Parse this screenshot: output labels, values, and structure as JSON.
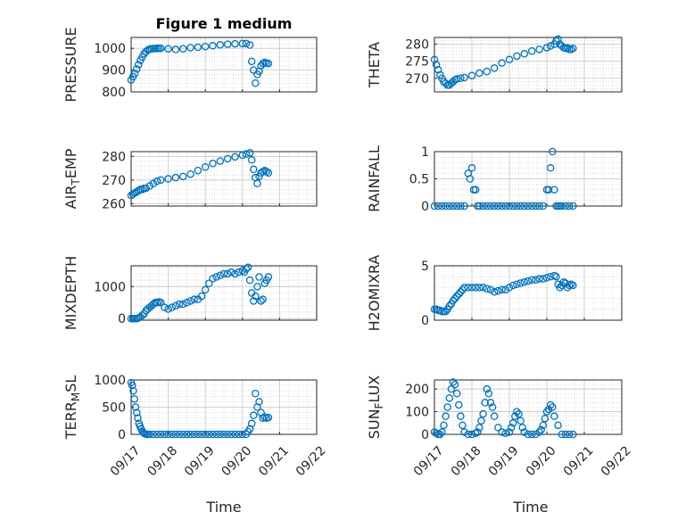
{
  "figure": {
    "title": "Figure 1 medium"
  },
  "chart_data": [
    {
      "type": "scatter",
      "name": "pressure",
      "ylabel": "PRESSURE",
      "ylim": [
        800,
        1050
      ],
      "yticks": [
        800,
        900,
        1000
      ],
      "ytick_labels": [
        "800",
        "900",
        "1000"
      ],
      "x": [
        0,
        0.05,
        0.1,
        0.15,
        0.2,
        0.25,
        0.3,
        0.35,
        0.4,
        0.45,
        0.5,
        0.55,
        0.6,
        0.65,
        0.7,
        0.75,
        0.8,
        1,
        1.2,
        1.4,
        1.6,
        1.8,
        2,
        2.2,
        2.4,
        2.6,
        2.8,
        3,
        3.1,
        3.2,
        3.25,
        3.3,
        3.35,
        3.4,
        3.45,
        3.5,
        3.55,
        3.6,
        3.65,
        3.7
      ],
      "y": [
        855,
        870,
        885,
        905,
        925,
        945,
        960,
        975,
        985,
        992,
        996,
        998,
        999,
        999,
        1000,
        1000,
        1000,
        998,
        995,
        998,
        1003,
        1005,
        1008,
        1012,
        1016,
        1019,
        1021,
        1022,
        1022,
        1015,
        940,
        900,
        840,
        880,
        895,
        920,
        930,
        935,
        932,
        930
      ]
    },
    {
      "type": "scatter",
      "name": "theta",
      "ylabel": "THETA",
      "ylim": [
        266,
        282
      ],
      "yticks": [
        270,
        275,
        280
      ],
      "ytick_labels": [
        "270",
        "275",
        "280"
      ],
      "x": [
        0,
        0.05,
        0.1,
        0.15,
        0.2,
        0.25,
        0.3,
        0.35,
        0.4,
        0.45,
        0.5,
        0.55,
        0.6,
        0.7,
        0.8,
        1,
        1.2,
        1.4,
        1.6,
        1.8,
        2,
        2.2,
        2.4,
        2.6,
        2.8,
        3,
        3.1,
        3.2,
        3.25,
        3.3,
        3.35,
        3.4,
        3.45,
        3.5,
        3.55,
        3.6,
        3.65,
        3.7
      ],
      "y": [
        275.5,
        274,
        272.5,
        271,
        270,
        269,
        268.5,
        268,
        268,
        268.5,
        269,
        269.5,
        269.8,
        270,
        270.2,
        270.8,
        271.5,
        272,
        273,
        274.5,
        275.5,
        276.5,
        277.2,
        278,
        278.5,
        279,
        279.5,
        280,
        281,
        281.5,
        280,
        279.5,
        279,
        278.8,
        279,
        278.5,
        278.5,
        278.8
      ]
    },
    {
      "type": "scatter",
      "name": "air-temp",
      "ylabel_main": "AIR",
      "ylabel_sub": "T",
      "ylabel_rest": "EMP",
      "ylim": [
        259,
        282
      ],
      "yticks": [
        260,
        270,
        280
      ],
      "ytick_labels": [
        "260",
        "270",
        "280"
      ],
      "x": [
        0,
        0.05,
        0.1,
        0.15,
        0.2,
        0.25,
        0.3,
        0.35,
        0.4,
        0.5,
        0.6,
        0.7,
        0.8,
        1,
        1.2,
        1.4,
        1.6,
        1.8,
        2,
        2.2,
        2.4,
        2.6,
        2.8,
        3,
        3.1,
        3.2,
        3.25,
        3.3,
        3.35,
        3.4,
        3.45,
        3.5,
        3.55,
        3.6,
        3.65,
        3.7
      ],
      "y": [
        263.5,
        264,
        264.5,
        265,
        265.5,
        266,
        266,
        266.5,
        266.5,
        267.5,
        268.5,
        269.5,
        270,
        270.5,
        271,
        271.5,
        272.5,
        274,
        275.5,
        277,
        278,
        279,
        279.8,
        280.5,
        281,
        281.5,
        278.5,
        274.5,
        271,
        268.5,
        271.5,
        273,
        273.5,
        274,
        273.5,
        273
      ]
    },
    {
      "type": "scatter",
      "name": "rainfall",
      "ylabel": "RAINFALL",
      "ylim": [
        0,
        1
      ],
      "yticks": [
        0,
        0.5,
        1
      ],
      "ytick_labels": [
        "0",
        "0.5",
        "1"
      ],
      "x": [
        0,
        0.1,
        0.2,
        0.3,
        0.4,
        0.5,
        0.6,
        0.7,
        0.8,
        0.9,
        0.95,
        1.0,
        1.05,
        1.1,
        1.15,
        1.2,
        1.3,
        1.4,
        1.5,
        1.6,
        1.7,
        1.8,
        1.9,
        2.0,
        2.1,
        2.2,
        2.3,
        2.4,
        2.5,
        2.6,
        2.7,
        2.8,
        2.9,
        3.0,
        3.05,
        3.1,
        3.15,
        3.2,
        3.25,
        3.3,
        3.35,
        3.4,
        3.5,
        3.6,
        3.7
      ],
      "y": [
        0,
        0,
        0,
        0,
        0,
        0,
        0,
        0,
        0,
        0.6,
        0.5,
        0.7,
        0.3,
        0.3,
        0,
        0,
        0,
        0,
        0,
        0,
        0,
        0,
        0,
        0,
        0,
        0,
        0,
        0,
        0,
        0,
        0,
        0,
        0,
        0.3,
        0.3,
        0.7,
        1.0,
        0.3,
        0,
        0,
        0,
        0,
        0,
        0,
        0
      ]
    },
    {
      "type": "scatter",
      "name": "mixdepth",
      "ylabel": "MIXDEPTH",
      "ylim": [
        -50,
        1650
      ],
      "yticks": [
        0,
        1000
      ],
      "ytick_labels": [
        "0",
        "1000"
      ],
      "x": [
        0,
        0.05,
        0.1,
        0.15,
        0.2,
        0.25,
        0.3,
        0.35,
        0.4,
        0.45,
        0.5,
        0.55,
        0.6,
        0.65,
        0.7,
        0.75,
        0.8,
        0.9,
        1.0,
        1.1,
        1.2,
        1.3,
        1.4,
        1.5,
        1.6,
        1.7,
        1.8,
        1.9,
        2.0,
        2.1,
        2.2,
        2.3,
        2.4,
        2.5,
        2.6,
        2.7,
        2.8,
        2.9,
        3.0,
        3.05,
        3.1,
        3.15,
        3.2,
        3.25,
        3.3,
        3.35,
        3.4,
        3.45,
        3.5,
        3.55,
        3.6,
        3.65,
        3.7
      ],
      "y": [
        0,
        0,
        0,
        0,
        20,
        50,
        100,
        150,
        250,
        300,
        350,
        400,
        450,
        500,
        500,
        520,
        500,
        350,
        300,
        350,
        400,
        450,
        450,
        500,
        550,
        600,
        600,
        700,
        900,
        1100,
        1250,
        1300,
        1350,
        1400,
        1400,
        1450,
        1400,
        1450,
        1500,
        1450,
        1550,
        1600,
        1200,
        800,
        550,
        700,
        1000,
        1300,
        550,
        600,
        1100,
        1200,
        1300
      ]
    },
    {
      "type": "scatter",
      "name": "h2o-mixratio",
      "ylabel": "H2OMIXRA",
      "ylim": [
        0,
        5
      ],
      "yticks": [
        0,
        5
      ],
      "ytick_labels": [
        "0",
        "5"
      ],
      "x": [
        0,
        0.05,
        0.1,
        0.15,
        0.2,
        0.25,
        0.3,
        0.35,
        0.4,
        0.45,
        0.5,
        0.55,
        0.6,
        0.65,
        0.7,
        0.75,
        0.8,
        0.9,
        1.0,
        1.1,
        1.2,
        1.3,
        1.4,
        1.5,
        1.6,
        1.7,
        1.8,
        1.9,
        2.0,
        2.1,
        2.2,
        2.3,
        2.4,
        2.5,
        2.6,
        2.7,
        2.8,
        2.9,
        3.0,
        3.1,
        3.2,
        3.25,
        3.3,
        3.35,
        3.4,
        3.45,
        3.5,
        3.55,
        3.6,
        3.65,
        3.7
      ],
      "y": [
        1.0,
        1.0,
        0.9,
        0.9,
        0.8,
        0.8,
        0.8,
        1.0,
        1.3,
        1.5,
        1.8,
        2.0,
        2.2,
        2.4,
        2.6,
        2.8,
        3.0,
        3.0,
        3.0,
        3.0,
        3.0,
        3.0,
        2.9,
        2.8,
        2.6,
        2.7,
        2.8,
        2.8,
        3.0,
        3.2,
        3.3,
        3.4,
        3.5,
        3.6,
        3.7,
        3.7,
        3.8,
        3.8,
        3.9,
        4.0,
        4.1,
        4.0,
        3.3,
        3.0,
        3.2,
        3.5,
        3.4,
        3.0,
        3.2,
        3.3,
        3.2
      ]
    },
    {
      "type": "scatter",
      "name": "terr-msl",
      "ylabel_main": "TERR",
      "ylabel_sub": "M",
      "ylabel_rest": "SL",
      "ylim": [
        0,
        1000
      ],
      "yticks": [
        0,
        500,
        1000
      ],
      "ytick_labels": [
        "0",
        "500",
        "1000"
      ],
      "x": [
        0,
        0.03,
        0.06,
        0.09,
        0.12,
        0.15,
        0.18,
        0.21,
        0.24,
        0.27,
        0.3,
        0.33,
        0.36,
        0.4,
        0.45,
        0.5,
        0.6,
        0.7,
        0.8,
        0.9,
        1.0,
        1.1,
        1.2,
        1.3,
        1.4,
        1.5,
        1.6,
        1.7,
        1.8,
        1.9,
        2.0,
        2.1,
        2.2,
        2.3,
        2.4,
        2.5,
        2.6,
        2.7,
        2.8,
        2.9,
        3.0,
        3.1,
        3.15,
        3.2,
        3.25,
        3.3,
        3.35,
        3.4,
        3.45,
        3.5,
        3.55,
        3.6,
        3.65,
        3.7
      ],
      "y": [
        950,
        900,
        800,
        650,
        500,
        400,
        300,
        200,
        150,
        100,
        60,
        30,
        15,
        5,
        0,
        0,
        0,
        0,
        0,
        0,
        0,
        0,
        0,
        0,
        0,
        0,
        0,
        0,
        0,
        0,
        0,
        0,
        0,
        0,
        0,
        0,
        0,
        0,
        0,
        0,
        0,
        0,
        50,
        100,
        200,
        350,
        750,
        500,
        600,
        400,
        300,
        320,
        300,
        310
      ]
    },
    {
      "type": "scatter",
      "name": "sun-flux",
      "ylabel_main": "SUN",
      "ylabel_sub": "F",
      "ylabel_rest": "LUX",
      "ylim": [
        0,
        240
      ],
      "yticks": [
        0,
        100,
        200
      ],
      "ytick_labels": [
        "0",
        "100",
        "200"
      ],
      "x": [
        0,
        0.05,
        0.1,
        0.15,
        0.2,
        0.25,
        0.3,
        0.35,
        0.4,
        0.45,
        0.5,
        0.55,
        0.6,
        0.65,
        0.7,
        0.75,
        0.8,
        0.9,
        1.0,
        1.1,
        1.15,
        1.2,
        1.25,
        1.3,
        1.35,
        1.4,
        1.45,
        1.5,
        1.55,
        1.6,
        1.7,
        1.8,
        1.9,
        2.0,
        2.05,
        2.1,
        2.15,
        2.2,
        2.25,
        2.3,
        2.35,
        2.4,
        2.5,
        2.6,
        2.7,
        2.8,
        2.85,
        2.9,
        2.95,
        3.0,
        3.05,
        3.1,
        3.15,
        3.2,
        3.3,
        3.4,
        3.5,
        3.6,
        3.7
      ],
      "y": [
        10,
        5,
        0,
        0,
        10,
        40,
        80,
        120,
        160,
        200,
        230,
        220,
        180,
        130,
        80,
        40,
        10,
        0,
        0,
        5,
        10,
        30,
        60,
        90,
        140,
        200,
        180,
        140,
        120,
        80,
        30,
        10,
        5,
        10,
        30,
        50,
        80,
        100,
        90,
        60,
        30,
        10,
        0,
        0,
        0,
        10,
        20,
        40,
        70,
        100,
        110,
        130,
        120,
        80,
        40,
        0,
        0,
        0,
        0
      ]
    }
  ],
  "x_axis": {
    "range": [
      0,
      5
    ],
    "tick_labels": [
      "09/17",
      "09/18",
      "09/19",
      "09/20",
      "09/21",
      "09/22"
    ],
    "label": "Time"
  },
  "colors": {
    "marker": "#0072bd",
    "axis": "#262626",
    "grid": "#c6c6c6"
  }
}
